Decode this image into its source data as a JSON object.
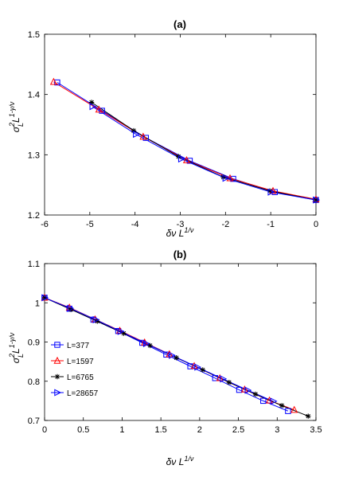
{
  "chart_data": [
    {
      "type": "line",
      "title": "(a)",
      "xlabel": "δν L^{1/ν}",
      "ylabel": "σ_L^2 L^{1-γ/ν}",
      "xlim": [
        -6,
        0
      ],
      "ylim": [
        1.2,
        1.5
      ],
      "xticks": [
        "-6",
        "-5",
        "-4",
        "-3",
        "-2",
        "-1",
        "0"
      ],
      "yticks": [
        "1.2",
        "1.3",
        "1.4",
        "1.5"
      ],
      "grid": false,
      "series": [
        {
          "name": "L=377",
          "color": "#0000ff",
          "marker": "square",
          "x": [
            -5.72,
            -4.73,
            -3.76,
            -2.79,
            -1.83,
            -0.91,
            0
          ],
          "y": [
            1.42,
            1.373,
            1.328,
            1.29,
            1.26,
            1.238,
            1.225
          ]
        },
        {
          "name": "L=1597",
          "color": "#ff0000",
          "marker": "triangle-up",
          "x": [
            -5.8,
            -4.8,
            -3.82,
            -2.86,
            -1.9,
            -0.95,
            0
          ],
          "y": [
            1.421,
            1.375,
            1.33,
            1.291,
            1.261,
            1.24,
            1.226
          ]
        },
        {
          "name": "L=6765",
          "color": "#000000",
          "marker": "star",
          "x": [
            -4.96,
            -4.03,
            -3.04,
            -2.05,
            -1.02,
            0
          ],
          "y": [
            1.387,
            1.34,
            1.297,
            1.263,
            1.24,
            1.225
          ]
        },
        {
          "name": "L=28657",
          "color": "#0000ff",
          "marker": "triangle-right",
          "x": [
            -4.94,
            -3.98,
            -2.98,
            -2.0,
            -1.0,
            0
          ],
          "y": [
            1.38,
            1.334,
            1.293,
            1.261,
            1.238,
            1.225
          ]
        }
      ]
    },
    {
      "type": "line",
      "title": "(b)",
      "xlabel": "δν L^{1/ν}",
      "ylabel": "σ_L^2 L^{1-γ/ν}",
      "xlim": [
        0,
        3.5
      ],
      "ylim": [
        0.7,
        1.1
      ],
      "xticks": [
        "0",
        "0.5",
        "1",
        "1.5",
        "2",
        "2.5",
        "3",
        "3.5"
      ],
      "yticks": [
        "0.7",
        "0.8",
        "0.9",
        "1",
        "1.1"
      ],
      "grid": false,
      "legend": "lower-left",
      "series": [
        {
          "name": "L=377",
          "color": "#0000ff",
          "marker": "square",
          "x": [
            0,
            0.32,
            0.63,
            0.95,
            1.26,
            1.57,
            1.88,
            2.2,
            2.51,
            2.82,
            3.14
          ],
          "y": [
            1.013,
            0.985,
            0.957,
            0.928,
            0.898,
            0.868,
            0.838,
            0.808,
            0.778,
            0.75,
            0.724
          ]
        },
        {
          "name": "L=1597",
          "color": "#ff0000",
          "marker": "triangle-up",
          "x": [
            0,
            0.32,
            0.65,
            0.97,
            1.29,
            1.61,
            1.93,
            2.26,
            2.58,
            2.9,
            3.22
          ],
          "y": [
            1.013,
            0.988,
            0.958,
            0.929,
            0.899,
            0.869,
            0.839,
            0.808,
            0.779,
            0.751,
            0.727
          ]
        },
        {
          "name": "L=6765",
          "color": "#000000",
          "marker": "star",
          "x": [
            0,
            0.34,
            0.68,
            1.02,
            1.36,
            1.7,
            2.04,
            2.38,
            2.72,
            3.06,
            3.4
          ],
          "y": [
            1.013,
            0.983,
            0.953,
            0.922,
            0.891,
            0.86,
            0.829,
            0.797,
            0.767,
            0.738,
            0.711
          ]
        },
        {
          "name": "L=28657",
          "color": "#0000ff",
          "marker": "triangle-right",
          "x": [
            0,
            0.33,
            0.66,
            0.98,
            1.31,
            1.64,
            1.97,
            2.3,
            2.62,
            2.95
          ],
          "y": [
            1.013,
            0.986,
            0.957,
            0.927,
            0.896,
            0.866,
            0.836,
            0.806,
            0.777,
            0.749
          ]
        }
      ]
    }
  ]
}
